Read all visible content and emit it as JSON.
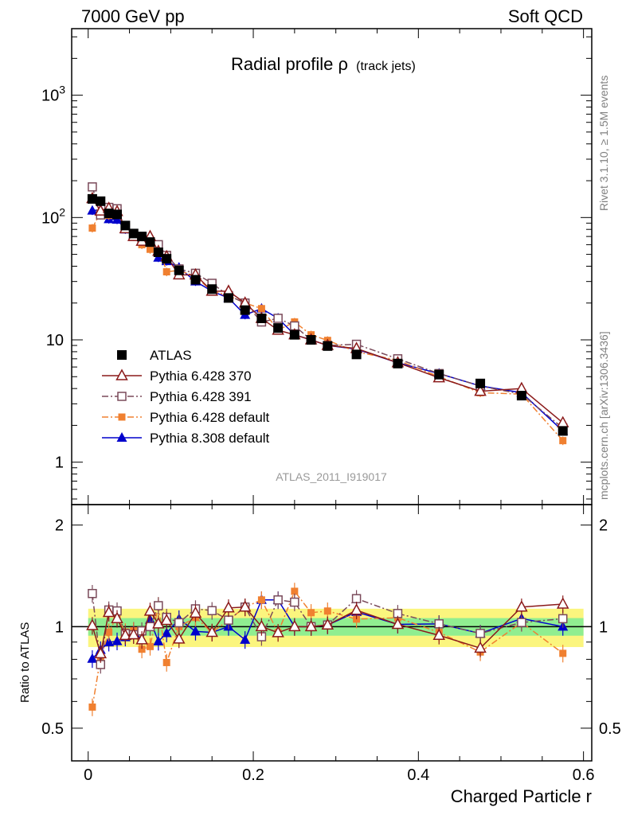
{
  "header": {
    "left": "7000 GeV pp",
    "right": "Soft QCD"
  },
  "side_text": {
    "rivet": "Rivet 3.1.10, ≥ 1.5M events",
    "mcplots": "mcplots.cern.ch [arXiv:1306.3436]"
  },
  "chart_data": {
    "type": "scatter",
    "title": "Radial profile ρ",
    "subtitle": "(track jets)",
    "analysis_label": "ATLAS_2011_I919017",
    "xlabel": "Charged Particle r",
    "ylabel_main": "",
    "ylabel_ratio": "Ratio to ATLAS",
    "xlim": [
      -0.02,
      0.61
    ],
    "x_ticks": [
      0,
      0.2,
      0.4,
      0.6
    ],
    "x_tick_labels": [
      "0",
      "0.2",
      "0.4",
      "0.6"
    ],
    "main_panel": {
      "yscale": "log",
      "ylim": [
        0.45,
        3500
      ],
      "y_tick_labels": [
        {
          "value": 1,
          "label": "1"
        },
        {
          "value": 10,
          "label": "10"
        },
        {
          "value": 100,
          "label": "10",
          "sup": "2"
        },
        {
          "value": 1000,
          "label": "10",
          "sup": "3"
        }
      ]
    },
    "ratio_panel": {
      "yscale": "log",
      "ylim": [
        0.4,
        2.3
      ],
      "y_tick_labels": [
        {
          "value": 0.5,
          "label": "0.5"
        },
        {
          "value": 1,
          "label": "1"
        },
        {
          "value": 2,
          "label": "2"
        }
      ],
      "band_inner": [
        0.94,
        1.06
      ],
      "band_outer": [
        0.87,
        1.13
      ]
    },
    "x": [
      0.005,
      0.015,
      0.025,
      0.035,
      0.045,
      0.055,
      0.065,
      0.075,
      0.085,
      0.095,
      0.11,
      0.13,
      0.15,
      0.17,
      0.19,
      0.21,
      0.23,
      0.25,
      0.27,
      0.29,
      0.325,
      0.375,
      0.425,
      0.475,
      0.525,
      0.575
    ],
    "legend": {
      "placement": "lower-left",
      "entries": [
        "ATLAS",
        "Pythia 6.428 370",
        "Pythia 6.428 391",
        "Pythia 6.428 default",
        "Pythia 8.308 default"
      ]
    },
    "series": [
      {
        "name": "ATLAS",
        "color": "#000000",
        "marker": "square-filled",
        "line": "none",
        "values": [
          142,
          136,
          108,
          106,
          86,
          74,
          70,
          63,
          52,
          46,
          37,
          31,
          26,
          22,
          17.5,
          15,
          12.5,
          11,
          10,
          8.9,
          7.6,
          6.4,
          5.2,
          4.4,
          3.5,
          1.8
        ]
      },
      {
        "name": "Pythia 6.428 370",
        "color": "#8b1a1a",
        "marker": "triangle-open",
        "line": "solid",
        "values": [
          143,
          113,
          119,
          112,
          81,
          70,
          64,
          70,
          53,
          48,
          34,
          34,
          25,
          25,
          20,
          15,
          12,
          11,
          10,
          9,
          8.5,
          6.5,
          4.9,
          3.8,
          4.0,
          2.1
        ]
      },
      {
        "name": "Pythia 6.428 391",
        "color": "#7a4a5a",
        "marker": "square-open",
        "line": "dash-dot",
        "values": [
          178,
          105,
          121,
          118,
          82,
          70,
          68,
          63,
          60,
          49,
          38,
          35,
          29,
          23,
          20,
          14,
          15,
          13,
          10,
          9,
          9.2,
          7.0,
          5.3,
          4.2,
          3.6,
          1.9
        ]
      },
      {
        "name": "Pythia 6.428 default",
        "color": "#f08030",
        "marker": "square-filled-small",
        "line": "dash-dot",
        "values": [
          82,
          110,
          104,
          114,
          83,
          72,
          60,
          55,
          60,
          36,
          37,
          33,
          25,
          23,
          20,
          18,
          12,
          14,
          11,
          9.9,
          8.0,
          6.8,
          5.0,
          3.7,
          3.6,
          1.5
        ]
      },
      {
        "name": "Pythia 8.308 default",
        "color": "#0000cc",
        "marker": "triangle-filled",
        "line": "solid",
        "values": [
          114,
          116,
          97,
          96,
          80,
          72,
          64,
          66,
          47,
          44,
          39,
          30,
          25,
          22,
          16,
          18,
          15,
          11,
          10,
          9,
          8.4,
          6.5,
          5.3,
          4.2,
          3.7,
          1.8
        ]
      }
    ]
  }
}
